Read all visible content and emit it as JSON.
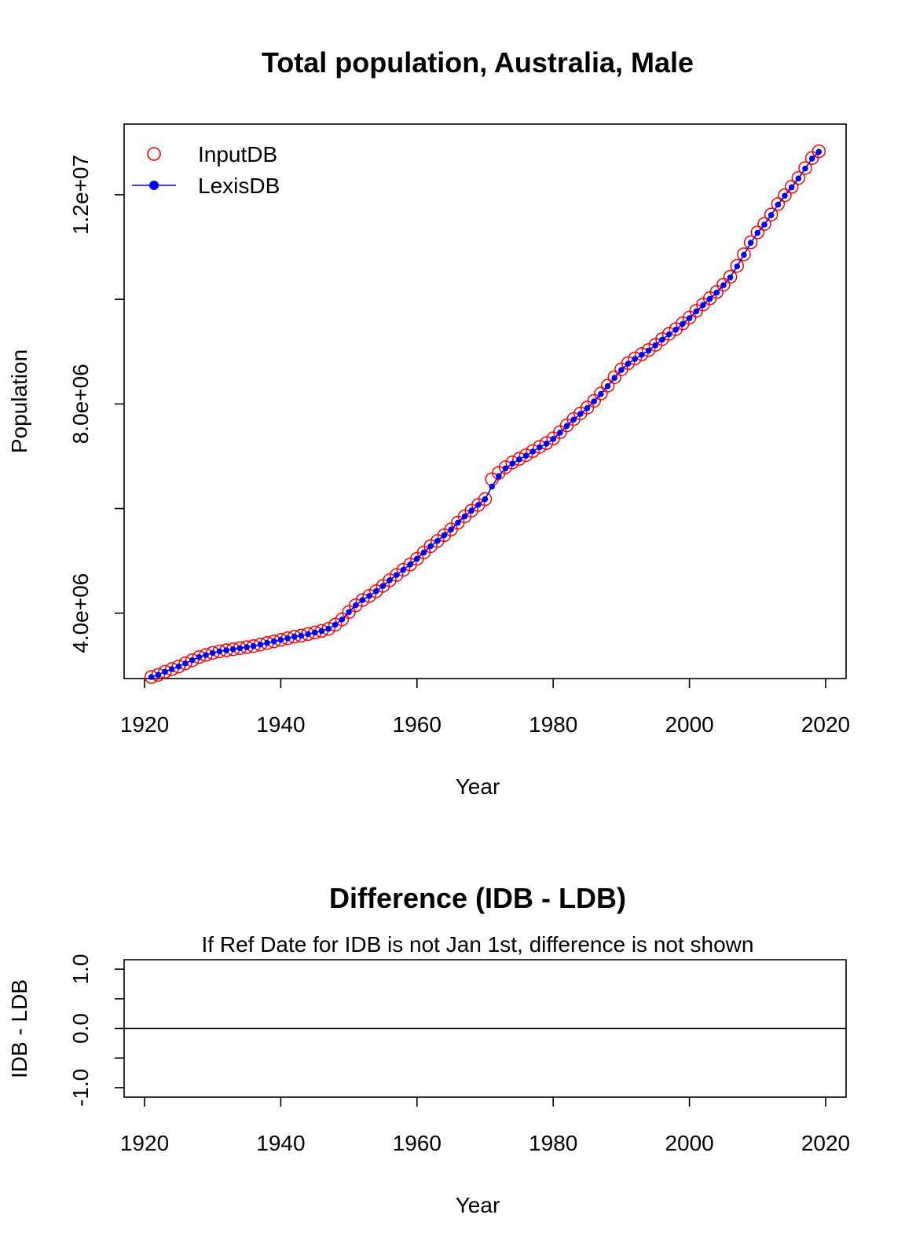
{
  "chart_data": [
    {
      "type": "line",
      "title": "Total population, Australia, Male",
      "xlabel": "Year",
      "ylabel": "Population",
      "xlim": [
        1917,
        2023
      ],
      "ylim": [
        2750000,
        13350000
      ],
      "xticks": [
        1920,
        1940,
        1960,
        1980,
        2000,
        2020
      ],
      "xtick_labels": [
        "1920",
        "1940",
        "1960",
        "1980",
        "2000",
        "2020"
      ],
      "yticks": [
        4000000,
        6000000,
        8000000,
        10000000,
        12000000
      ],
      "ytick_labels": [
        "4.0e+06",
        "",
        "8.0e+06",
        "",
        "1.2e+07"
      ],
      "legend": {
        "position": "top-left",
        "entries": [
          {
            "label": "InputDB",
            "marker": "open-circle",
            "color": "#ff0000"
          },
          {
            "label": "LexisDB",
            "marker": "filled-circle-line",
            "color": "#0000ff"
          }
        ]
      },
      "x": [
        1921,
        1922,
        1923,
        1924,
        1925,
        1926,
        1927,
        1928,
        1929,
        1930,
        1931,
        1932,
        1933,
        1934,
        1935,
        1936,
        1937,
        1938,
        1939,
        1940,
        1941,
        1942,
        1943,
        1944,
        1945,
        1946,
        1947,
        1948,
        1949,
        1950,
        1951,
        1952,
        1953,
        1954,
        1955,
        1956,
        1957,
        1958,
        1959,
        1960,
        1961,
        1962,
        1963,
        1964,
        1965,
        1966,
        1967,
        1968,
        1969,
        1970,
        1971,
        1972,
        1973,
        1974,
        1975,
        1976,
        1977,
        1978,
        1979,
        1980,
        1981,
        1982,
        1983,
        1984,
        1985,
        1986,
        1987,
        1988,
        1989,
        1990,
        1991,
        1992,
        1993,
        1994,
        1995,
        1996,
        1997,
        1998,
        1999,
        2000,
        2001,
        2002,
        2003,
        2004,
        2005,
        2006,
        2007,
        2008,
        2009,
        2010,
        2011,
        2012,
        2013,
        2014,
        2015,
        2016,
        2017,
        2018,
        2019
      ],
      "series": [
        {
          "name": "InputDB",
          "color": "#ff0000",
          "values": [
            2780000,
            2820000,
            2880000,
            2930000,
            2980000,
            3040000,
            3100000,
            3160000,
            3200000,
            3240000,
            3270000,
            3290000,
            3310000,
            3330000,
            3350000,
            3370000,
            3400000,
            3430000,
            3460000,
            3490000,
            3520000,
            3550000,
            3570000,
            3600000,
            3630000,
            3660000,
            3700000,
            3780000,
            3880000,
            4020000,
            4150000,
            4250000,
            4330000,
            4420000,
            4520000,
            4630000,
            4730000,
            4830000,
            4930000,
            5040000,
            5160000,
            5280000,
            5380000,
            5490000,
            5600000,
            5730000,
            5850000,
            5960000,
            6070000,
            6180000,
            6560000,
            6680000,
            6790000,
            6880000,
            6950000,
            7020000,
            7100000,
            7180000,
            7250000,
            7340000,
            7460000,
            7590000,
            7710000,
            7820000,
            7930000,
            8060000,
            8200000,
            8350000,
            8510000,
            8660000,
            8780000,
            8870000,
            8950000,
            9030000,
            9130000,
            9240000,
            9340000,
            9430000,
            9540000,
            9650000,
            9780000,
            9900000,
            10020000,
            10140000,
            10280000,
            10430000,
            10640000,
            10860000,
            11090000,
            11280000,
            11440000,
            11620000,
            11820000,
            11990000,
            12150000,
            12320000,
            12510000,
            12700000,
            12830000
          ]
        },
        {
          "name": "LexisDB",
          "color": "#0000ff",
          "values": [
            2780000,
            2820000,
            2880000,
            2930000,
            2980000,
            3040000,
            3100000,
            3160000,
            3200000,
            3240000,
            3270000,
            3290000,
            3310000,
            3330000,
            3350000,
            3370000,
            3400000,
            3430000,
            3460000,
            3490000,
            3520000,
            3550000,
            3570000,
            3600000,
            3630000,
            3660000,
            3700000,
            3780000,
            3880000,
            4020000,
            4150000,
            4250000,
            4330000,
            4420000,
            4520000,
            4630000,
            4730000,
            4830000,
            4930000,
            5040000,
            5160000,
            5280000,
            5380000,
            5490000,
            5600000,
            5730000,
            5850000,
            5960000,
            6070000,
            6180000,
            6420000,
            6620000,
            6770000,
            6860000,
            6940000,
            7010000,
            7090000,
            7170000,
            7240000,
            7330000,
            7450000,
            7580000,
            7700000,
            7810000,
            7920000,
            8050000,
            8190000,
            8340000,
            8500000,
            8650000,
            8770000,
            8860000,
            8940000,
            9020000,
            9120000,
            9230000,
            9330000,
            9420000,
            9530000,
            9640000,
            9770000,
            9890000,
            10010000,
            10130000,
            10270000,
            10420000,
            10630000,
            10850000,
            11080000,
            11270000,
            11430000,
            11610000,
            11810000,
            11980000,
            12140000,
            12310000,
            12500000,
            12690000,
            12820000
          ]
        }
      ]
    },
    {
      "type": "line",
      "title": "Difference (IDB - LDB)",
      "subtitle": "If Ref Date for IDB is not Jan 1st, difference is not shown",
      "xlabel": "Year",
      "ylabel": "IDB - LDB",
      "xlim": [
        1917,
        2023
      ],
      "ylim": [
        -1.16,
        1.16
      ],
      "xticks": [
        1920,
        1940,
        1960,
        1980,
        2000,
        2020
      ],
      "xtick_labels": [
        "1920",
        "1940",
        "1960",
        "1980",
        "2000",
        "2020"
      ],
      "yticks": [
        -1.0,
        -0.5,
        0.0,
        0.5,
        1.0
      ],
      "ytick_labels": [
        "-1.0",
        "",
        "0.0",
        "",
        "1.0"
      ],
      "reference_line": 0,
      "series": []
    }
  ]
}
